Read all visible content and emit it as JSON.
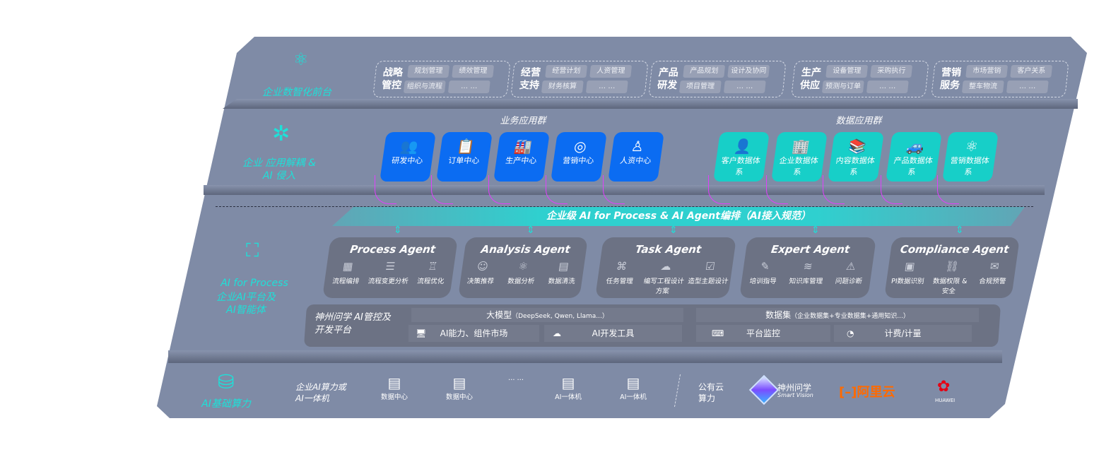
{
  "layers": {
    "front": {
      "label": "企业数智化前台",
      "icon": "brain-icon",
      "groups": [
        {
          "title": "战略管控",
          "items": [
            "规划管理",
            "绩效管理",
            "组织与流程",
            "… …"
          ]
        },
        {
          "title": "经营支持",
          "items": [
            "经营计划",
            "人资管理",
            "财务核算",
            "… …"
          ]
        },
        {
          "title": "产品研发",
          "items": [
            "产品规划",
            "设计及协同",
            "项目管理",
            "… …"
          ]
        },
        {
          "title": "生产供应",
          "items": [
            "设备管理",
            "采购执行",
            "预测与订单",
            "… …"
          ]
        },
        {
          "title": "营销服务",
          "items": [
            "市场营销",
            "客户关系",
            "整车物流",
            "… …"
          ]
        }
      ]
    },
    "apps": {
      "label": "企业 应用解耦 & AI 侵入",
      "icon": "network-node-icon",
      "business_title": "业务应用群",
      "data_title": "数据应用群",
      "business": [
        {
          "label": "研发中心",
          "icon": "team-icon"
        },
        {
          "label": "订单中心",
          "icon": "clipboard-icon"
        },
        {
          "label": "生产中心",
          "icon": "factory-icon"
        },
        {
          "label": "营销中心",
          "icon": "target-icon"
        },
        {
          "label": "人资中心",
          "icon": "person-icon"
        }
      ],
      "data": [
        {
          "label": "客户数据体系",
          "icon": "user-icon"
        },
        {
          "label": "企业数据体系",
          "icon": "building-icon"
        },
        {
          "label": "内容数据体系",
          "icon": "books-icon"
        },
        {
          "label": "产品数据体系",
          "icon": "car-icon"
        },
        {
          "label": "营销数据体系",
          "icon": "atom-icon"
        }
      ],
      "band": "企业级 AI for Process & AI Agent编排（AI接入规范）"
    },
    "ai": {
      "label_en": "AI for Process",
      "label_cn": "企业AI平台及AI智能体",
      "icon": "face-scan-icon",
      "agents": [
        {
          "name": "Process Agent",
          "items": [
            "流程编排",
            "流程变更分析",
            "流程优化"
          ]
        },
        {
          "name": "Analysis Agent",
          "items": [
            "决策推荐",
            "数据分析",
            "数据清洗"
          ]
        },
        {
          "name": "Task Agent",
          "items": [
            "任务管理",
            "编写工程设计方案",
            "造型主题设计"
          ]
        },
        {
          "name": "Expert Agent",
          "items": [
            "培训指导",
            "知识库管理",
            "问题诊断"
          ]
        },
        {
          "name": "Compliance Agent",
          "items": [
            "PI数据识别",
            "数据权限 & 安全",
            "合规预警"
          ]
        }
      ],
      "platform": {
        "title": "神州问学 AI管控及开发平台",
        "model": "大模型",
        "model_note": "（DeepSeek, Qwen, Llama...）",
        "dataset": "数据集",
        "dataset_note": "（企业数据集+专业数据集+通用知识...）",
        "tools": [
          "AI能力、组件市场",
          "AI开发工具",
          "平台监控",
          "计费/计量"
        ]
      }
    },
    "compute": {
      "label": "AI基础算力",
      "icon": "database-icon",
      "private_title": "企业AI算力或AI一体机",
      "servers": [
        "数据中心",
        "数据中心",
        "… …",
        "AI一体机",
        "AI一体机"
      ],
      "public_title": "公有云算力",
      "vendors": [
        "神州问学",
        "Smart Vision",
        "阿里云",
        "HUAWEI"
      ]
    }
  },
  "colors": {
    "panel": "#7f8ba6",
    "blue": "#0b6cf2",
    "teal": "#17cfc8",
    "accent": "#1ee0d8",
    "arrow": "#e040fb",
    "aliyun": "#ff6a00",
    "huawei": "#e60012"
  }
}
